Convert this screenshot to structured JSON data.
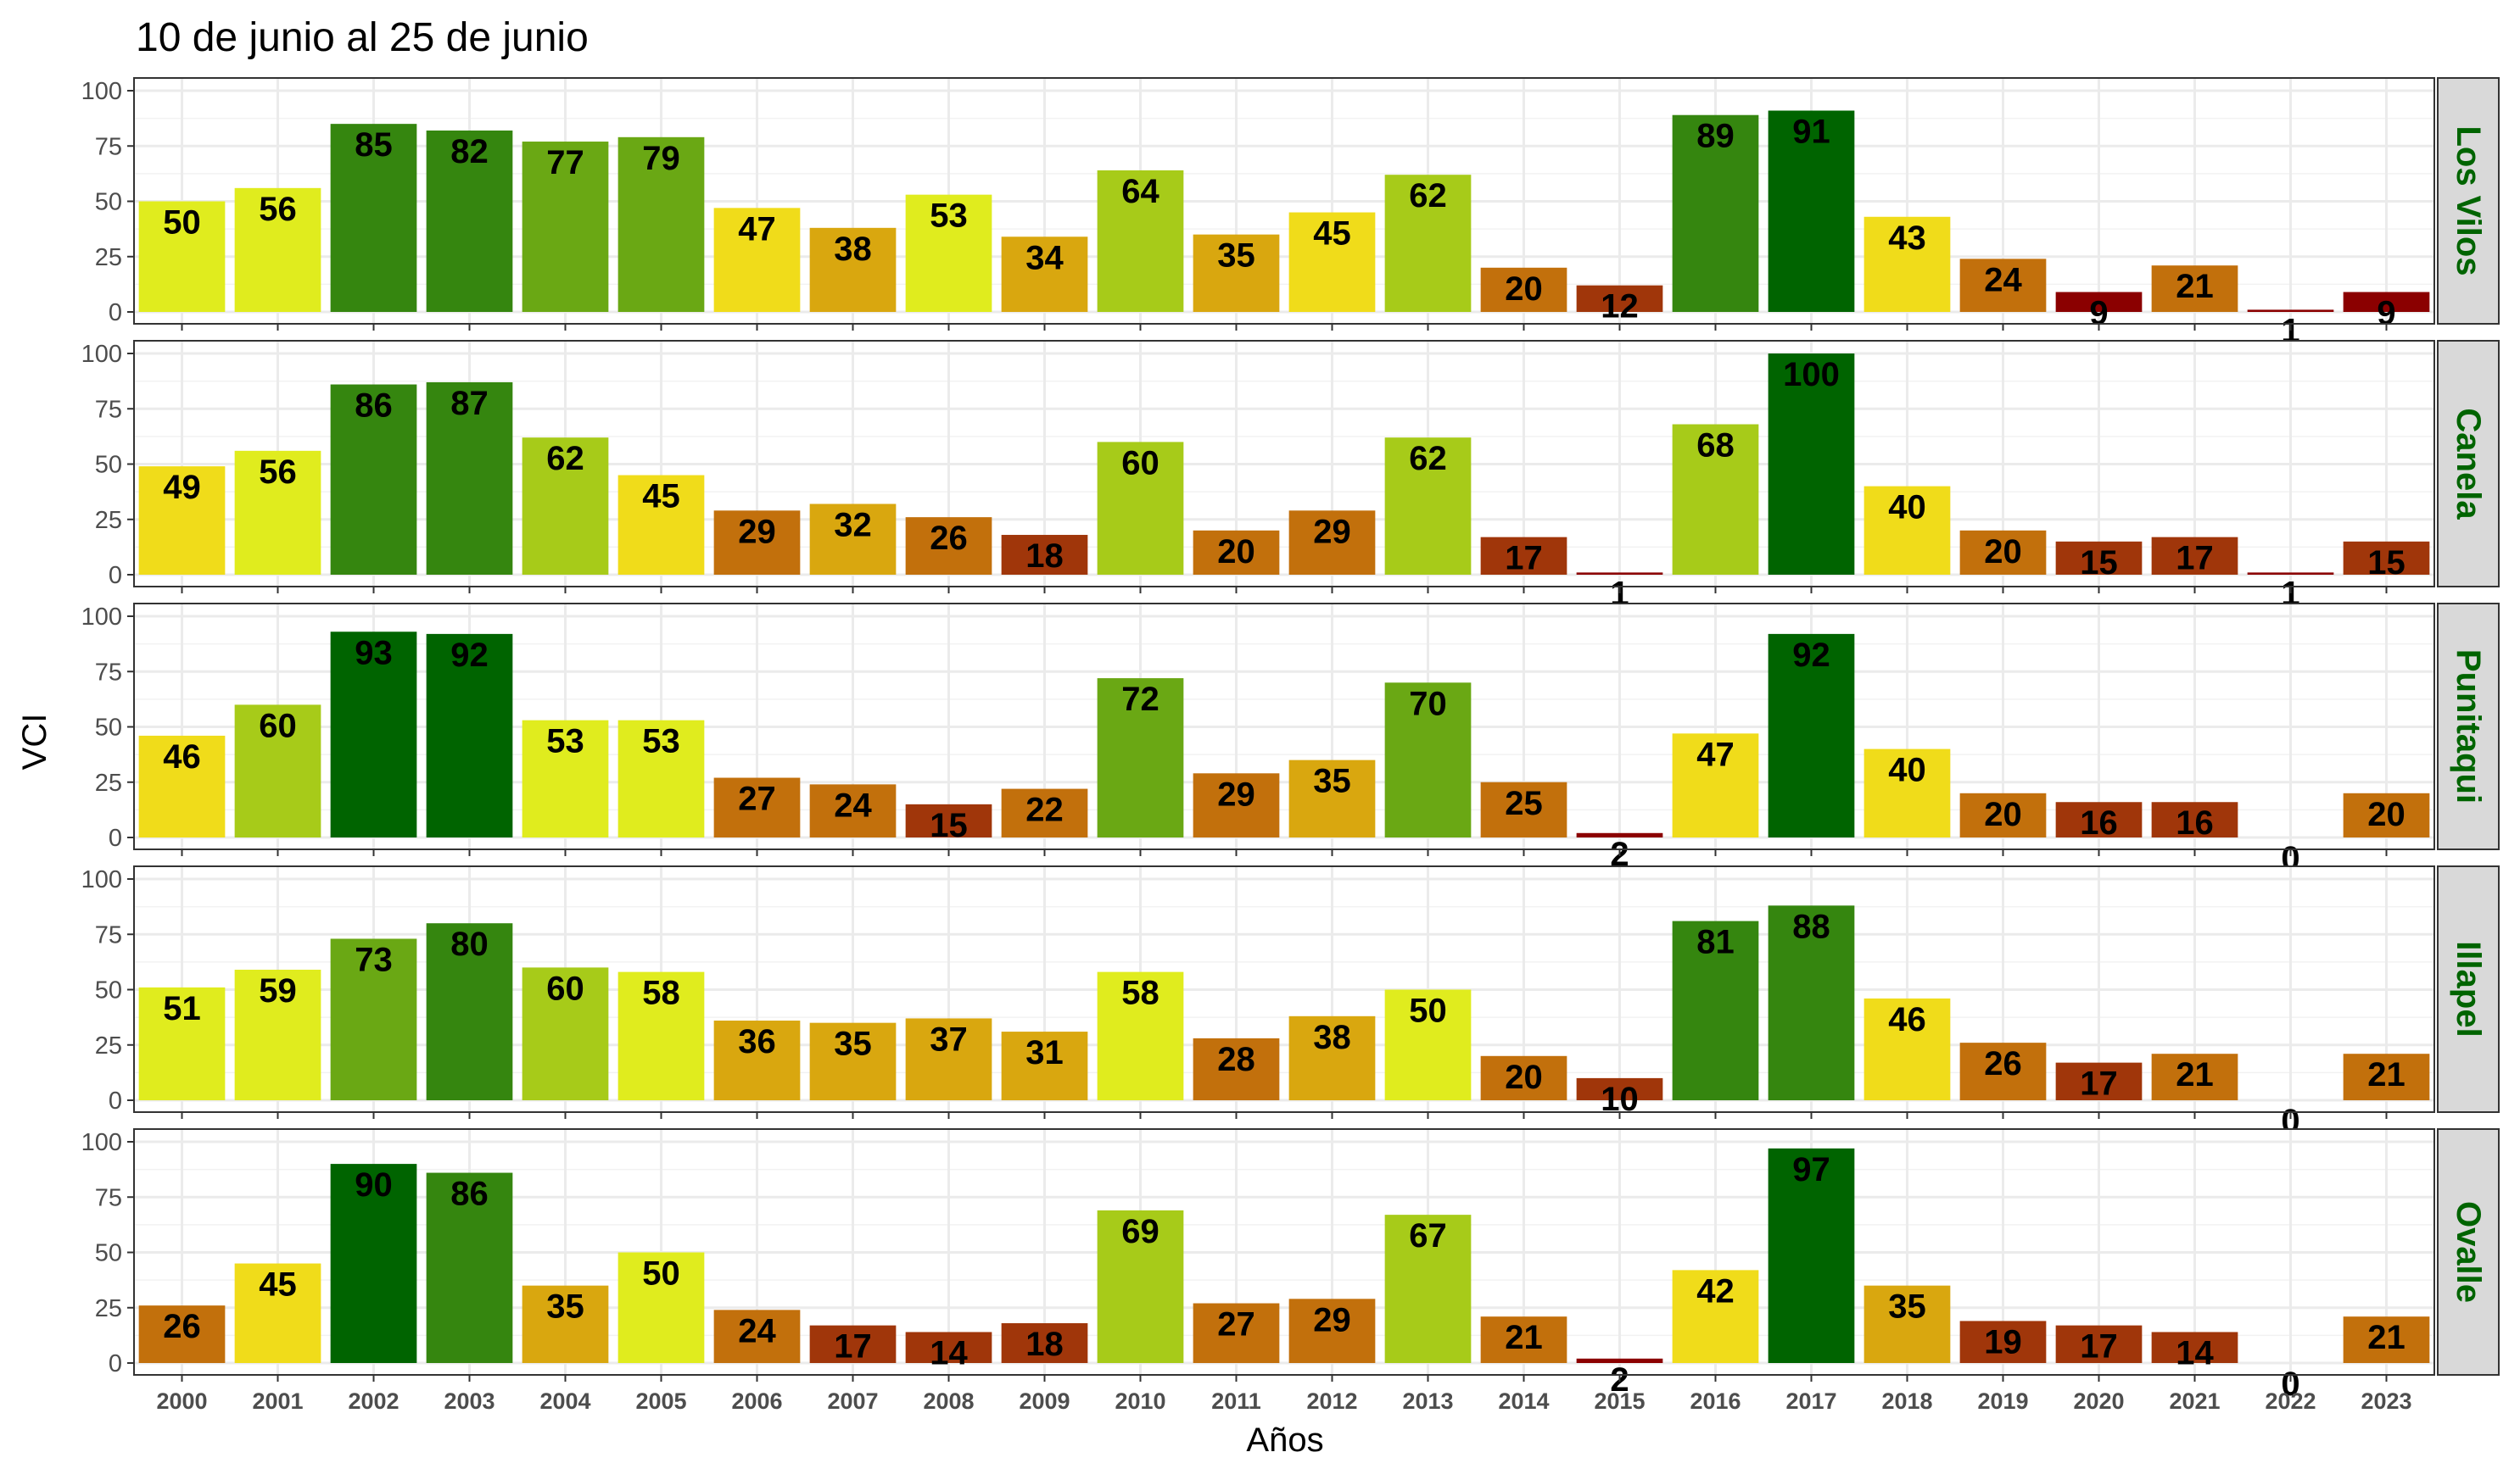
{
  "chart_data": {
    "type": "bar",
    "title": "10 de junio al 25 de junio",
    "xlabel": "Años",
    "ylabel": "VCI",
    "ylim": [
      0,
      100
    ],
    "yticks": [
      0,
      25,
      50,
      75,
      100
    ],
    "grid": true,
    "categories": [
      "2000",
      "2001",
      "2002",
      "2003",
      "2004",
      "2005",
      "2006",
      "2007",
      "2008",
      "2009",
      "2010",
      "2011",
      "2012",
      "2013",
      "2014",
      "2015",
      "2016",
      "2017",
      "2018",
      "2019",
      "2020",
      "2021",
      "2022",
      "2023"
    ],
    "color_scale": [
      "#8b0000",
      "#a0360a",
      "#c2700c",
      "#d9a70f",
      "#f0dc1a",
      "#e0ec1e",
      "#a7cb19",
      "#6aa814",
      "#35860f",
      "#006400"
    ],
    "panels": [
      {
        "name": "Los Vilos",
        "values": [
          50,
          56,
          85,
          82,
          77,
          79,
          47,
          38,
          53,
          34,
          64,
          35,
          45,
          62,
          20,
          12,
          89,
          91,
          43,
          24,
          9,
          21,
          1,
          9
        ]
      },
      {
        "name": "Canela",
        "values": [
          49,
          56,
          86,
          87,
          62,
          45,
          29,
          32,
          26,
          18,
          60,
          20,
          29,
          62,
          17,
          1,
          68,
          100,
          40,
          20,
          15,
          17,
          1,
          15
        ]
      },
      {
        "name": "Punitaqui",
        "values": [
          46,
          60,
          93,
          92,
          53,
          53,
          27,
          24,
          15,
          22,
          72,
          29,
          35,
          70,
          25,
          2,
          47,
          92,
          40,
          20,
          16,
          16,
          0,
          20
        ]
      },
      {
        "name": "Illapel",
        "values": [
          51,
          59,
          73,
          80,
          60,
          58,
          36,
          35,
          37,
          31,
          58,
          28,
          38,
          50,
          20,
          10,
          81,
          88,
          46,
          26,
          17,
          21,
          0,
          21
        ]
      },
      {
        "name": "Ovalle",
        "values": [
          26,
          45,
          90,
          86,
          35,
          50,
          24,
          17,
          14,
          18,
          69,
          27,
          29,
          67,
          21,
          2,
          42,
          97,
          35,
          19,
          17,
          14,
          0,
          21
        ]
      }
    ]
  }
}
